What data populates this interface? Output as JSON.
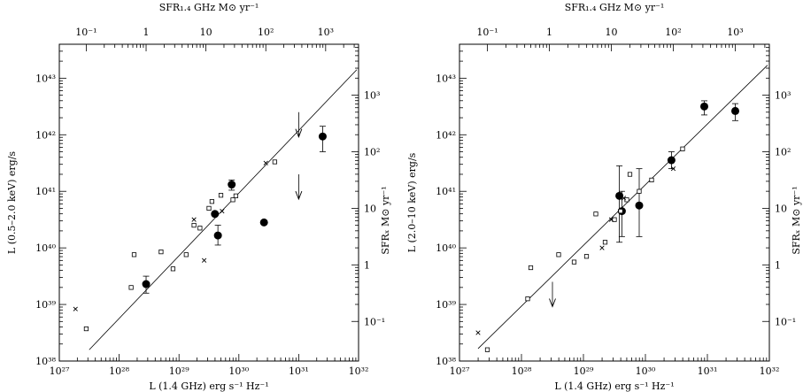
{
  "chart_data": [
    {
      "type": "scatter",
      "xlabel": "L (1.4 GHz)   erg s⁻¹ Hz⁻¹",
      "ylabel": "L (0.5–2.0 keV)   erg/s",
      "top_label": "SFR₁.₄ GHz   M⊙ yr⁻¹",
      "right_label": "SFRₓ   M⊙ yr⁻¹",
      "x_log_range": [
        27,
        32
      ],
      "y_log_range": [
        38,
        43.6
      ],
      "bottom_ticks": [
        {
          "e": 27,
          "label": "10²⁷"
        },
        {
          "e": 28,
          "label": "10²⁸"
        },
        {
          "e": 29,
          "label": "10²⁹"
        },
        {
          "e": 30,
          "label": "10³⁰"
        },
        {
          "e": 31,
          "label": "10³¹"
        },
        {
          "e": 32,
          "label": "10³²"
        }
      ],
      "left_ticks": [
        {
          "e": 38,
          "label": "10³⁸"
        },
        {
          "e": 39,
          "label": "10³⁹"
        },
        {
          "e": 40,
          "label": "10⁴⁰"
        },
        {
          "e": 41,
          "label": "10⁴¹"
        },
        {
          "e": 42,
          "label": "10⁴²"
        },
        {
          "e": 43,
          "label": "10⁴³"
        }
      ],
      "top_ticks": [
        {
          "e": 27.45,
          "label": "10⁻¹"
        },
        {
          "e": 28.45,
          "label": "1"
        },
        {
          "e": 29.45,
          "label": "10"
        },
        {
          "e": 30.45,
          "label": "10²"
        },
        {
          "e": 31.45,
          "label": "10³"
        }
      ],
      "right_ticks": [
        {
          "e": 38.7,
          "label": "10⁻¹"
        },
        {
          "e": 39.7,
          "label": "1"
        },
        {
          "e": 40.7,
          "label": "10"
        },
        {
          "e": 41.7,
          "label": "10²"
        },
        {
          "e": 42.7,
          "label": "10³"
        }
      ],
      "fit_line": {
        "x": [
          27.5,
          31.97
        ],
        "y": [
          38.2,
          43.15
        ]
      },
      "series": [
        {
          "marker": "filled-circle",
          "points": [
            {
              "x": 28.45,
              "y": 39.36,
              "err": [
                39.2,
                39.5
              ]
            },
            {
              "x": 29.6,
              "y": 40.6
            },
            {
              "x": 29.65,
              "y": 40.22,
              "err": [
                40.05,
                40.4
              ]
            },
            {
              "x": 29.88,
              "y": 41.12,
              "err": [
                41.02,
                41.2
              ]
            },
            {
              "x": 30.42,
              "y": 40.45
            },
            {
              "x": 31.4,
              "y": 41.97,
              "err": [
                41.7,
                42.15
              ]
            }
          ]
        },
        {
          "marker": "open-square",
          "points": [
            {
              "x": 27.45,
              "y": 38.57
            },
            {
              "x": 28.2,
              "y": 39.3
            },
            {
              "x": 28.25,
              "y": 39.88
            },
            {
              "x": 28.7,
              "y": 39.93
            },
            {
              "x": 28.9,
              "y": 39.63
            },
            {
              "x": 29.12,
              "y": 39.88
            },
            {
              "x": 29.25,
              "y": 40.4
            },
            {
              "x": 29.35,
              "y": 40.35
            },
            {
              "x": 29.5,
              "y": 40.7
            },
            {
              "x": 29.55,
              "y": 40.82
            },
            {
              "x": 29.7,
              "y": 40.93
            },
            {
              "x": 29.9,
              "y": 40.85
            },
            {
              "x": 29.95,
              "y": 40.92
            },
            {
              "x": 30.6,
              "y": 41.52
            }
          ]
        },
        {
          "marker": "cross",
          "points": [
            {
              "x": 27.27,
              "y": 38.92
            },
            {
              "x": 29.25,
              "y": 40.5
            },
            {
              "x": 29.42,
              "y": 39.78
            },
            {
              "x": 29.72,
              "y": 40.65
            },
            {
              "x": 30.45,
              "y": 41.5
            }
          ]
        }
      ],
      "upper_limits": [
        {
          "x": 31.0,
          "y": 42.4
        },
        {
          "x": 31.0,
          "y": 41.3
        }
      ]
    },
    {
      "type": "scatter",
      "xlabel": "L (1.4 GHz)   erg s⁻¹ Hz⁻¹",
      "ylabel": "L (2.0–10 keV)   erg/s",
      "top_label": "SFR₁.₄ GHz   M⊙ yr⁻¹",
      "right_label": "SFRₓ   M⊙ yr⁻¹",
      "x_log_range": [
        27,
        32
      ],
      "y_log_range": [
        38,
        43.6
      ],
      "bottom_ticks": [
        {
          "e": 27,
          "label": "10²⁷"
        },
        {
          "e": 28,
          "label": "10²⁸"
        },
        {
          "e": 29,
          "label": "10²⁹"
        },
        {
          "e": 30,
          "label": "10³⁰"
        },
        {
          "e": 31,
          "label": "10³¹"
        },
        {
          "e": 32,
          "label": "10³²"
        }
      ],
      "left_ticks": [
        {
          "e": 38,
          "label": "10³⁸"
        },
        {
          "e": 39,
          "label": "10³⁹"
        },
        {
          "e": 40,
          "label": "10⁴⁰"
        },
        {
          "e": 41,
          "label": "10⁴¹"
        },
        {
          "e": 42,
          "label": "10⁴²"
        },
        {
          "e": 43,
          "label": "10⁴³"
        }
      ],
      "top_ticks": [
        {
          "e": 27.45,
          "label": "10⁻¹"
        },
        {
          "e": 28.45,
          "label": "1"
        },
        {
          "e": 29.45,
          "label": "10"
        },
        {
          "e": 30.45,
          "label": "10²"
        },
        {
          "e": 31.45,
          "label": "10³"
        }
      ],
      "right_ticks": [
        {
          "e": 38.7,
          "label": "10⁻¹"
        },
        {
          "e": 39.7,
          "label": "1"
        },
        {
          "e": 40.7,
          "label": "10"
        },
        {
          "e": 41.7,
          "label": "10²"
        },
        {
          "e": 42.7,
          "label": "10³"
        }
      ],
      "fit_line": {
        "x": [
          27.3,
          31.97
        ],
        "y": [
          38.22,
          43.23
        ]
      },
      "series": [
        {
          "marker": "filled-circle",
          "points": [
            {
              "x": 29.58,
              "y": 40.92,
              "err": [
                40.1,
                41.45
              ]
            },
            {
              "x": 29.62,
              "y": 40.65,
              "err": [
                40.2,
                41.0
              ]
            },
            {
              "x": 29.9,
              "y": 40.75,
              "err": [
                40.2,
                41.4
              ]
            },
            {
              "x": 30.42,
              "y": 41.55,
              "err": [
                41.4,
                41.7
              ]
            },
            {
              "x": 30.95,
              "y": 42.5,
              "err": [
                42.35,
                42.6
              ]
            },
            {
              "x": 31.45,
              "y": 42.42,
              "err": [
                42.25,
                42.55
              ]
            }
          ]
        },
        {
          "marker": "open-square",
          "points": [
            {
              "x": 27.45,
              "y": 38.2
            },
            {
              "x": 28.1,
              "y": 39.1
            },
            {
              "x": 28.15,
              "y": 39.65
            },
            {
              "x": 28.6,
              "y": 39.88
            },
            {
              "x": 28.85,
              "y": 39.75
            },
            {
              "x": 29.05,
              "y": 39.85
            },
            {
              "x": 29.2,
              "y": 40.6
            },
            {
              "x": 29.35,
              "y": 40.1
            },
            {
              "x": 29.5,
              "y": 40.5
            },
            {
              "x": 29.6,
              "y": 40.65
            },
            {
              "x": 29.7,
              "y": 40.85
            },
            {
              "x": 29.75,
              "y": 41.3
            },
            {
              "x": 29.9,
              "y": 41.0
            },
            {
              "x": 30.1,
              "y": 41.2
            },
            {
              "x": 30.6,
              "y": 41.75
            }
          ]
        },
        {
          "marker": "cross",
          "points": [
            {
              "x": 27.3,
              "y": 38.5
            },
            {
              "x": 29.3,
              "y": 40.0
            },
            {
              "x": 29.45,
              "y": 40.5
            },
            {
              "x": 29.65,
              "y": 40.88
            },
            {
              "x": 30.45,
              "y": 41.4
            }
          ]
        }
      ],
      "upper_limits": [
        {
          "x": 28.5,
          "y": 39.4
        }
      ]
    }
  ]
}
